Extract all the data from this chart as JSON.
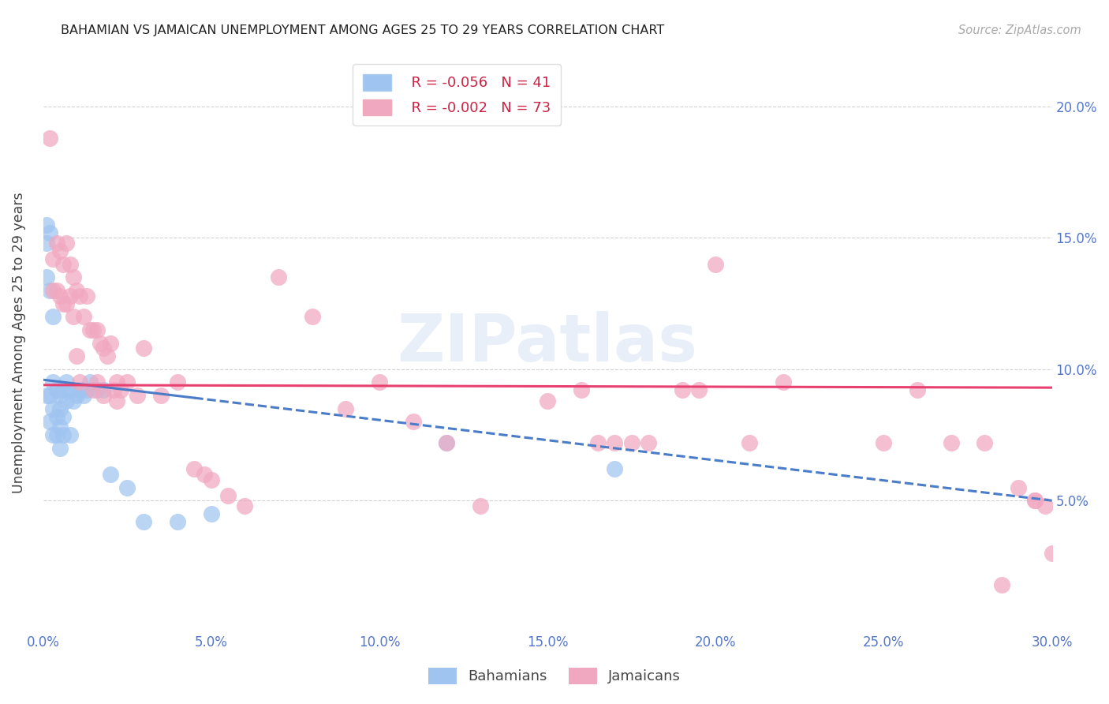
{
  "title": "BAHAMIAN VS JAMAICAN UNEMPLOYMENT AMONG AGES 25 TO 29 YEARS CORRELATION CHART",
  "source": "Source: ZipAtlas.com",
  "ylabel": "Unemployment Among Ages 25 to 29 years",
  "xlim": [
    0.0,
    0.3
  ],
  "ylim": [
    0.0,
    0.22
  ],
  "xticks": [
    0.0,
    0.05,
    0.1,
    0.15,
    0.2,
    0.25,
    0.3
  ],
  "yticks": [
    0.05,
    0.1,
    0.15,
    0.2
  ],
  "xtick_labels": [
    "0.0%",
    "5.0%",
    "10.0%",
    "15.0%",
    "20.0%",
    "25.0%",
    "30.0%"
  ],
  "right_ytick_labels": [
    "5.0%",
    "10.0%",
    "15.0%",
    "20.0%"
  ],
  "legend_r1": "R = -0.056",
  "legend_n1": "N = 41",
  "legend_r2": "R = -0.002",
  "legend_n2": "N = 73",
  "color_bahamian": "#a0c4f0",
  "color_jamaican": "#f0a8c0",
  "color_trend_bahamian": "#4a7cc7",
  "color_trend_jamaican": "#e84070",
  "color_axis_text": "#5577cc",
  "watermark_text": "ZIPatlas",
  "trend_b_x0": 0.0,
  "trend_b_y0": 0.096,
  "trend_b_x1": 0.3,
  "trend_b_y1": 0.05,
  "trend_j_x0": 0.0,
  "trend_j_y0": 0.094,
  "trend_j_x1": 0.3,
  "trend_j_y1": 0.093,
  "bahamian_x": [
    0.001,
    0.001,
    0.001,
    0.001,
    0.002,
    0.002,
    0.002,
    0.002,
    0.003,
    0.003,
    0.003,
    0.003,
    0.004,
    0.004,
    0.004,
    0.005,
    0.005,
    0.005,
    0.005,
    0.006,
    0.006,
    0.006,
    0.007,
    0.007,
    0.008,
    0.008,
    0.009,
    0.01,
    0.011,
    0.012,
    0.013,
    0.014,
    0.016,
    0.018,
    0.02,
    0.025,
    0.03,
    0.04,
    0.05,
    0.12,
    0.17
  ],
  "bahamian_y": [
    0.155,
    0.148,
    0.135,
    0.09,
    0.152,
    0.13,
    0.09,
    0.08,
    0.12,
    0.095,
    0.085,
    0.075,
    0.092,
    0.082,
    0.075,
    0.09,
    0.085,
    0.078,
    0.07,
    0.092,
    0.082,
    0.075,
    0.095,
    0.088,
    0.092,
    0.075,
    0.088,
    0.09,
    0.092,
    0.09,
    0.092,
    0.095,
    0.092,
    0.092,
    0.06,
    0.055,
    0.042,
    0.042,
    0.045,
    0.072,
    0.062
  ],
  "jamaican_x": [
    0.002,
    0.003,
    0.003,
    0.004,
    0.004,
    0.005,
    0.005,
    0.006,
    0.006,
    0.007,
    0.007,
    0.008,
    0.008,
    0.009,
    0.009,
    0.01,
    0.01,
    0.011,
    0.011,
    0.012,
    0.013,
    0.014,
    0.015,
    0.015,
    0.016,
    0.016,
    0.017,
    0.018,
    0.018,
    0.019,
    0.02,
    0.021,
    0.022,
    0.022,
    0.023,
    0.025,
    0.028,
    0.03,
    0.035,
    0.04,
    0.045,
    0.048,
    0.05,
    0.055,
    0.06,
    0.07,
    0.08,
    0.09,
    0.1,
    0.11,
    0.12,
    0.13,
    0.15,
    0.16,
    0.165,
    0.17,
    0.175,
    0.18,
    0.19,
    0.195,
    0.2,
    0.21,
    0.22,
    0.25,
    0.26,
    0.27,
    0.28,
    0.285,
    0.29,
    0.295,
    0.295,
    0.298,
    0.3
  ],
  "jamaican_y": [
    0.188,
    0.142,
    0.13,
    0.148,
    0.13,
    0.145,
    0.128,
    0.14,
    0.125,
    0.148,
    0.125,
    0.14,
    0.128,
    0.135,
    0.12,
    0.13,
    0.105,
    0.128,
    0.095,
    0.12,
    0.128,
    0.115,
    0.115,
    0.092,
    0.115,
    0.095,
    0.11,
    0.108,
    0.09,
    0.105,
    0.11,
    0.092,
    0.095,
    0.088,
    0.092,
    0.095,
    0.09,
    0.108,
    0.09,
    0.095,
    0.062,
    0.06,
    0.058,
    0.052,
    0.048,
    0.135,
    0.12,
    0.085,
    0.095,
    0.08,
    0.072,
    0.048,
    0.088,
    0.092,
    0.072,
    0.072,
    0.072,
    0.072,
    0.092,
    0.092,
    0.14,
    0.072,
    0.095,
    0.072,
    0.092,
    0.072,
    0.072,
    0.018,
    0.055,
    0.05,
    0.05,
    0.048,
    0.03
  ]
}
